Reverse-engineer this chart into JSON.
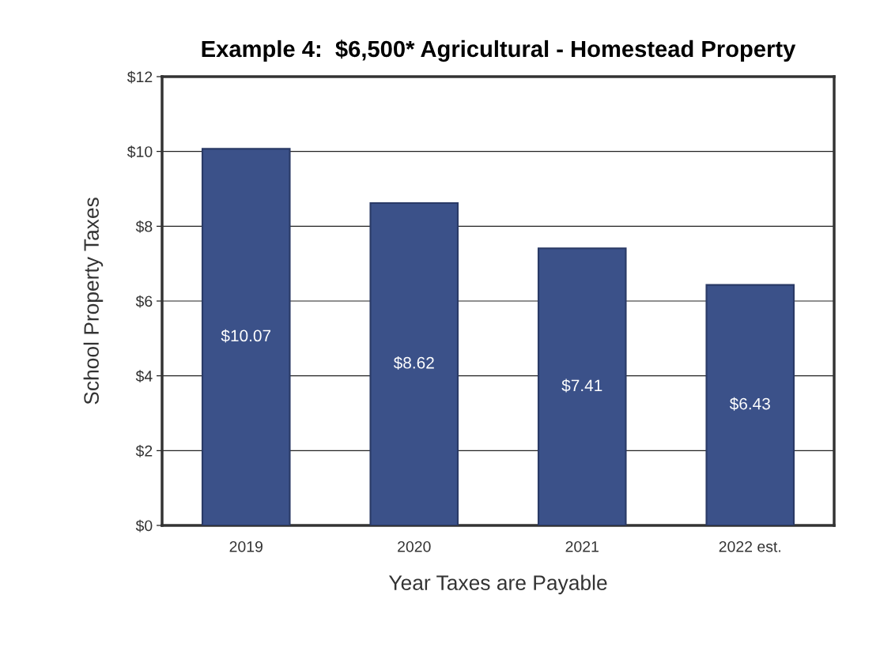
{
  "chart_data": {
    "type": "bar",
    "title": "Example 4:  $6,500* Agricultural - Homestead Property",
    "xlabel": "Year Taxes are Payable",
    "ylabel": "School Property Taxes",
    "categories": [
      "2019",
      "2020",
      "2021",
      "2022 est."
    ],
    "values": [
      10.07,
      8.62,
      7.41,
      6.43
    ],
    "value_labels": [
      "$10.07",
      "$8.62",
      "$7.41",
      "$6.43"
    ],
    "color": "#3b5189",
    "ylim": [
      0,
      12
    ],
    "yticks": [
      {
        "value": 0,
        "label": "$0"
      },
      {
        "value": 2,
        "label": "$2"
      },
      {
        "value": 4,
        "label": "$4"
      },
      {
        "value": 6,
        "label": "$6"
      },
      {
        "value": 8,
        "label": "$8"
      },
      {
        "value": 10,
        "label": "$10"
      },
      {
        "value": 12,
        "label": "$12"
      }
    ],
    "grid": "y"
  }
}
